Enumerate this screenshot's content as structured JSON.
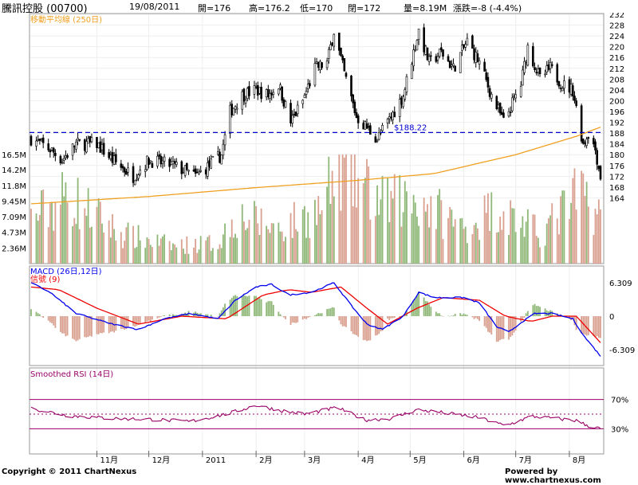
{
  "header": {
    "stock_name": "騰訊控股 (00700)",
    "date": "19/08/2011",
    "open": "開=176",
    "high": "高=176.2",
    "low": "低=170",
    "close": "閉=172",
    "volume": "量=8.19M",
    "change": "漲跌=-8 (-4.4%)"
  },
  "footer": {
    "copyright": "Copyright © 2011 ChartNexus",
    "powered": "Powered by www.chartnexus.com"
  },
  "colors": {
    "up_bar": "#8fb878",
    "down_bar": "#d9a090",
    "ma": "#f0a020",
    "macd": "#0000ee",
    "signal": "#ee0000",
    "rsi": "#990066",
    "reference": "#0000cc"
  },
  "chart_data": [
    {
      "type": "candlestick",
      "ma_label": "移動平均線 (250日)",
      "reference_label": "$188.22",
      "reference_value": 188.22,
      "price_ticks": [
        "232",
        "228",
        "224",
        "220",
        "216",
        "212",
        "208",
        "204",
        "200",
        "196",
        "192",
        "188",
        "184",
        "180",
        "176",
        "172",
        "168",
        "164"
      ],
      "volume_ticks": [
        "16.5M",
        "14.2M",
        "11.8M",
        "9.45M",
        "7.09M",
        "4.73M",
        "2.36M"
      ],
      "x_ticks": [
        "11月",
        "12月",
        "2011",
        "2月",
        "3月",
        "4月",
        "5月",
        "6月",
        "7月",
        "8月"
      ],
      "ylim": [
        160,
        232
      ],
      "price_path": [
        {
          "d": "2010-09-24",
          "v": 186
        },
        {
          "d": "2010-10-05",
          "v": 182
        },
        {
          "d": "2010-10-12",
          "v": 178
        },
        {
          "d": "2010-10-20",
          "v": 184
        },
        {
          "d": "2010-11-01",
          "v": 184
        },
        {
          "d": "2010-11-10",
          "v": 178
        },
        {
          "d": "2010-11-22",
          "v": 172
        },
        {
          "d": "2010-12-01",
          "v": 178
        },
        {
          "d": "2010-12-15",
          "v": 176
        },
        {
          "d": "2010-12-28",
          "v": 172
        },
        {
          "d": "2011-01-05",
          "v": 176
        },
        {
          "d": "2011-01-12",
          "v": 180
        },
        {
          "d": "2011-01-17",
          "v": 196
        },
        {
          "d": "2011-01-24",
          "v": 202
        },
        {
          "d": "2011-02-01",
          "v": 204
        },
        {
          "d": "2011-02-08",
          "v": 202
        },
        {
          "d": "2011-02-14",
          "v": 206
        },
        {
          "d": "2011-02-21",
          "v": 192
        },
        {
          "d": "2011-02-28",
          "v": 200
        },
        {
          "d": "2011-03-07",
          "v": 212
        },
        {
          "d": "2011-03-14",
          "v": 214
        },
        {
          "d": "2011-03-18",
          "v": 226
        },
        {
          "d": "2011-03-24",
          "v": 210
        },
        {
          "d": "2011-03-31",
          "v": 194
        },
        {
          "d": "2011-04-06",
          "v": 190
        },
        {
          "d": "2011-04-12",
          "v": 186
        },
        {
          "d": "2011-04-20",
          "v": 194
        },
        {
          "d": "2011-04-27",
          "v": 202
        },
        {
          "d": "2011-05-03",
          "v": 218
        },
        {
          "d": "2011-05-06",
          "v": 226
        },
        {
          "d": "2011-05-12",
          "v": 214
        },
        {
          "d": "2011-05-19",
          "v": 218
        },
        {
          "d": "2011-05-26",
          "v": 212
        },
        {
          "d": "2011-06-03",
          "v": 222
        },
        {
          "d": "2011-06-10",
          "v": 214
        },
        {
          "d": "2011-06-17",
          "v": 202
        },
        {
          "d": "2011-06-24",
          "v": 192
        },
        {
          "d": "2011-07-04",
          "v": 206
        },
        {
          "d": "2011-07-08",
          "v": 220
        },
        {
          "d": "2011-07-15",
          "v": 208
        },
        {
          "d": "2011-07-21",
          "v": 212
        },
        {
          "d": "2011-07-28",
          "v": 206
        },
        {
          "d": "2011-08-03",
          "v": 204
        },
        {
          "d": "2011-08-09",
          "v": 184
        },
        {
          "d": "2011-08-12",
          "v": 188
        },
        {
          "d": "2011-08-16",
          "v": 182
        },
        {
          "d": "2011-08-19",
          "v": 172
        }
      ],
      "ma_path": [
        {
          "d": "2010-09-24",
          "v": 161.8
        },
        {
          "d": "2010-12-01",
          "v": 164.5
        },
        {
          "d": "2011-02-01",
          "v": 167.8
        },
        {
          "d": "2011-04-01",
          "v": 170.5
        },
        {
          "d": "2011-05-15",
          "v": 173
        },
        {
          "d": "2011-07-01",
          "v": 180
        },
        {
          "d": "2011-08-05",
          "v": 186.8
        },
        {
          "d": "2011-08-19",
          "v": 190.2
        }
      ],
      "volume_path": [
        {
          "d": "2010-09-24",
          "v": 7.5
        },
        {
          "d": "2010-10-15",
          "v": 11.5
        },
        {
          "d": "2010-11-15",
          "v": 5
        },
        {
          "d": "2010-12-15",
          "v": 3
        },
        {
          "d": "2011-01-10",
          "v": 3.5
        },
        {
          "d": "2011-01-20",
          "v": 8
        },
        {
          "d": "2011-02-15",
          "v": 6
        },
        {
          "d": "2011-03-10",
          "v": 9
        },
        {
          "d": "2011-03-22",
          "v": 16.5
        },
        {
          "d": "2011-04-15",
          "v": 10
        },
        {
          "d": "2011-05-05",
          "v": 11
        },
        {
          "d": "2011-06-01",
          "v": 6
        },
        {
          "d": "2011-06-20",
          "v": 9.5
        },
        {
          "d": "2011-07-15",
          "v": 5
        },
        {
          "d": "2011-08-08",
          "v": 12
        },
        {
          "d": "2011-08-19",
          "v": 8.19
        }
      ]
    },
    {
      "type": "line",
      "label_macd": "MACD (26日,12日)",
      "label_signal": "信號 (9)",
      "y_ticks": [
        "6.309",
        "0",
        "-6.309"
      ],
      "ylim": [
        -9,
        9
      ],
      "macd_path": [
        {
          "d": "2010-09-24",
          "v": 6.3
        },
        {
          "d": "2010-10-05",
          "v": 4.5
        },
        {
          "d": "2010-10-20",
          "v": 0.5
        },
        {
          "d": "2010-11-10",
          "v": -1.5
        },
        {
          "d": "2010-11-25",
          "v": -2.5
        },
        {
          "d": "2010-12-10",
          "v": -0.5
        },
        {
          "d": "2010-12-25",
          "v": 0.5
        },
        {
          "d": "2011-01-10",
          "v": -0.5
        },
        {
          "d": "2011-01-20",
          "v": 3
        },
        {
          "d": "2011-02-01",
          "v": 5.5
        },
        {
          "d": "2011-02-10",
          "v": 6
        },
        {
          "d": "2011-02-20",
          "v": 4
        },
        {
          "d": "2011-03-05",
          "v": 4.5
        },
        {
          "d": "2011-03-18",
          "v": 6.3
        },
        {
          "d": "2011-03-28",
          "v": 2
        },
        {
          "d": "2011-04-06",
          "v": -1.5
        },
        {
          "d": "2011-04-15",
          "v": -2.5
        },
        {
          "d": "2011-04-27",
          "v": 0
        },
        {
          "d": "2011-05-06",
          "v": 4.5
        },
        {
          "d": "2011-05-15",
          "v": 3.5
        },
        {
          "d": "2011-06-01",
          "v": 3.5
        },
        {
          "d": "2011-06-10",
          "v": 2.5
        },
        {
          "d": "2011-06-20",
          "v": -2
        },
        {
          "d": "2011-06-27",
          "v": -3
        },
        {
          "d": "2011-07-05",
          "v": -1
        },
        {
          "d": "2011-07-12",
          "v": 0.5
        },
        {
          "d": "2011-07-22",
          "v": 0.5
        },
        {
          "d": "2011-08-03",
          "v": -0.5
        },
        {
          "d": "2011-08-10",
          "v": -4
        },
        {
          "d": "2011-08-19",
          "v": -7.5
        }
      ],
      "signal_path": [
        {
          "d": "2010-09-24",
          "v": 5.5
        },
        {
          "d": "2010-10-10",
          "v": 5
        },
        {
          "d": "2010-11-01",
          "v": 1.5
        },
        {
          "d": "2010-11-25",
          "v": -1.5
        },
        {
          "d": "2010-12-20",
          "v": 0
        },
        {
          "d": "2011-01-15",
          "v": -0.5
        },
        {
          "d": "2011-02-05",
          "v": 4
        },
        {
          "d": "2011-02-20",
          "v": 5
        },
        {
          "d": "2011-03-05",
          "v": 4.5
        },
        {
          "d": "2011-03-22",
          "v": 5.5
        },
        {
          "d": "2011-04-06",
          "v": 1.5
        },
        {
          "d": "2011-04-18",
          "v": -1.5
        },
        {
          "d": "2011-05-05",
          "v": 1.5
        },
        {
          "d": "2011-05-20",
          "v": 3.5
        },
        {
          "d": "2011-06-10",
          "v": 3
        },
        {
          "d": "2011-06-25",
          "v": 0
        },
        {
          "d": "2011-07-10",
          "v": -1
        },
        {
          "d": "2011-07-22",
          "v": 0
        },
        {
          "d": "2011-08-05",
          "v": 0
        },
        {
          "d": "2011-08-19",
          "v": -5
        }
      ]
    },
    {
      "type": "line",
      "label": "Smoothed RSI (14日)",
      "y_ticks": [
        "70%",
        "30%"
      ],
      "ylim": [
        0,
        100
      ],
      "rsi_path": [
        {
          "d": "2010-09-24",
          "v": 58
        },
        {
          "d": "2010-10-15",
          "v": 48
        },
        {
          "d": "2010-11-10",
          "v": 44
        },
        {
          "d": "2010-12-01",
          "v": 43
        },
        {
          "d": "2010-12-25",
          "v": 40
        },
        {
          "d": "2011-01-15",
          "v": 50
        },
        {
          "d": "2011-02-01",
          "v": 62
        },
        {
          "d": "2011-02-15",
          "v": 55
        },
        {
          "d": "2011-03-01",
          "v": 50
        },
        {
          "d": "2011-03-20",
          "v": 59
        },
        {
          "d": "2011-04-05",
          "v": 42
        },
        {
          "d": "2011-04-20",
          "v": 44
        },
        {
          "d": "2011-05-05",
          "v": 56
        },
        {
          "d": "2011-05-20",
          "v": 52
        },
        {
          "d": "2011-06-10",
          "v": 45
        },
        {
          "d": "2011-06-25",
          "v": 34
        },
        {
          "d": "2011-07-10",
          "v": 47
        },
        {
          "d": "2011-07-25",
          "v": 44
        },
        {
          "d": "2011-08-05",
          "v": 41
        },
        {
          "d": "2011-08-12",
          "v": 34
        },
        {
          "d": "2011-08-19",
          "v": 30
        }
      ]
    }
  ]
}
